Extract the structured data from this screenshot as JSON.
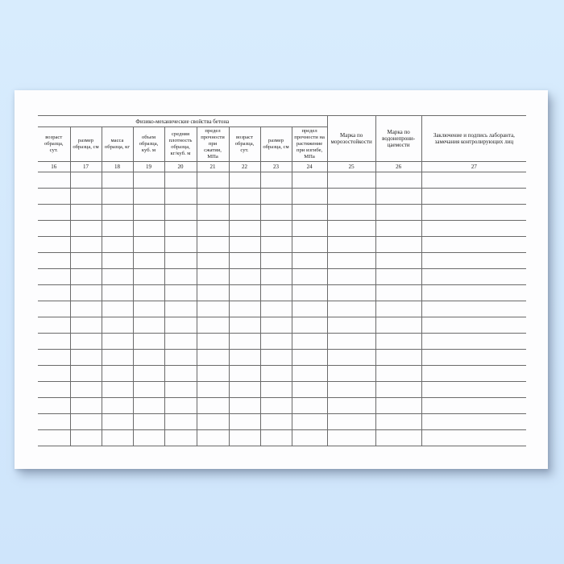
{
  "page": {
    "background_color": "#d3e8fc",
    "paper_color": "#fdfdfe",
    "grid_color": "#6a6a6a",
    "text_color": "#212121"
  },
  "table": {
    "group_header": "Физико-механические свойства бетона",
    "columns": [
      {
        "number": "16",
        "label": "возраст\nобразца,\nсут."
      },
      {
        "number": "17",
        "label": "размер\nобразца, см"
      },
      {
        "number": "18",
        "label": "масса\nобразца, кг"
      },
      {
        "number": "19",
        "label": "объем\nобразца,\nкуб. м"
      },
      {
        "number": "20",
        "label": "средняя\nплотность\nобразца,\nкг/куб. м"
      },
      {
        "number": "21",
        "label": "предел\nпрочности\nпри\nсжатии,\nМПа"
      },
      {
        "number": "22",
        "label": "возраст\nобразца,\nсут."
      },
      {
        "number": "23",
        "label": "размер\nобразца, см"
      },
      {
        "number": "24",
        "label": "предел\nпрочности на\nрастяжение\nпри изгибе,\nМПа"
      },
      {
        "number": "25",
        "label": "Марка по\nморозостойкости"
      },
      {
        "number": "26",
        "label": "Марка по\nводонепрони-\nцаемости"
      },
      {
        "number": "27",
        "label": "Заключение и  подпись лаборанта,\nзамечания контролирующих лиц"
      }
    ],
    "data_row_count": 17
  }
}
